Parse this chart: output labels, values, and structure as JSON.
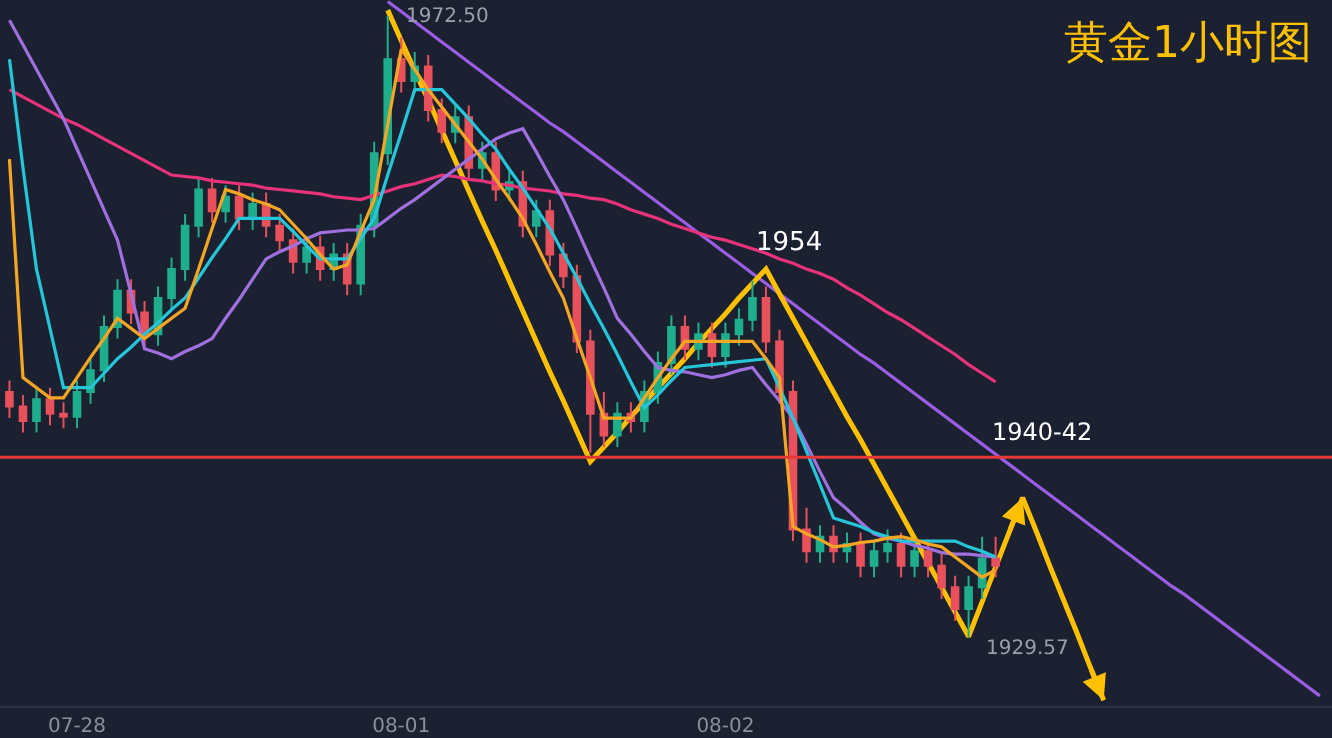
{
  "chart_data": {
    "type": "candlestick",
    "title": "黄金1小时图",
    "categories": [
      null,
      null,
      null,
      null,
      null,
      "07-28",
      null,
      null,
      null,
      null,
      null,
      null,
      null,
      null,
      null,
      null,
      null,
      null,
      null,
      null,
      null,
      null,
      null,
      null,
      null,
      null,
      null,
      null,
      null,
      "08-01",
      null,
      null,
      null,
      null,
      null,
      null,
      null,
      null,
      null,
      null,
      null,
      null,
      null,
      null,
      null,
      null,
      null,
      null,
      null,
      null,
      null,
      null,
      null,
      "08-02",
      null,
      null,
      null,
      null,
      null,
      null,
      null,
      null,
      null,
      null,
      null,
      null,
      null,
      null,
      null,
      null,
      null,
      null,
      null,
      null,
      null,
      null,
      null,
      null,
      null,
      null,
      null,
      null,
      null,
      null,
      null,
      null,
      null,
      null,
      null,
      null,
      null,
      null,
      null,
      null,
      null,
      null,
      null,
      null
    ],
    "ohlc": [
      [
        1946.5,
        1947.3,
        1944.7,
        1945.5
      ],
      [
        1945.5,
        1946.3,
        1943.7,
        1944.5
      ],
      [
        1944.5,
        1946.8,
        1943.7,
        1946
      ],
      [
        1946,
        1946.8,
        1944.2,
        1945
      ],
      [
        1945,
        1945.8,
        1944,
        1944.8
      ],
      [
        1944.8,
        1947.3,
        1944,
        1946.5
      ],
      [
        1946.5,
        1948.8,
        1945.7,
        1948
      ],
      [
        1948,
        1951.8,
        1947.2,
        1951
      ],
      [
        1951,
        1954.3,
        1950.2,
        1953.5
      ],
      [
        1953.5,
        1954.3,
        1951.2,
        1952
      ],
      [
        1952,
        1952.8,
        1949.7,
        1950.5
      ],
      [
        1950.5,
        1953.8,
        1949.7,
        1953
      ],
      [
        1953,
        1955.8,
        1952.2,
        1955
      ],
      [
        1955,
        1958.8,
        1954.2,
        1958
      ],
      [
        1958,
        1961.3,
        1957.2,
        1960.5
      ],
      [
        1960.5,
        1961.3,
        1958.2,
        1959
      ],
      [
        1959,
        1960.8,
        1958.2,
        1960
      ],
      [
        1960,
        1960.8,
        1957.7,
        1958.5
      ],
      [
        1958.5,
        1960.3,
        1957.7,
        1959.5
      ],
      [
        1959.5,
        1960.3,
        1957.2,
        1958
      ],
      [
        1958,
        1958.8,
        1956.2,
        1957
      ],
      [
        1957,
        1957.8,
        1954.7,
        1955.5
      ],
      [
        1955.5,
        1957.3,
        1954.7,
        1956.5
      ],
      [
        1956.5,
        1957.3,
        1954.2,
        1955
      ],
      [
        1955,
        1956.8,
        1954.2,
        1956
      ],
      [
        1956,
        1956.8,
        1953.2,
        1954
      ],
      [
        1954,
        1958.8,
        1953.2,
        1958
      ],
      [
        1958,
        1963.8,
        1957.2,
        1963
      ],
      [
        1963,
        1972.5,
        1962.2,
        1969.5
      ],
      [
        1969.5,
        1971,
        1967.2,
        1968
      ],
      [
        1968,
        1970,
        1967.2,
        1969
      ],
      [
        1969,
        1969.8,
        1965.2,
        1966
      ],
      [
        1966,
        1966.8,
        1963.7,
        1964.5
      ],
      [
        1964.5,
        1966.3,
        1963.7,
        1965.5
      ],
      [
        1965.5,
        1966.3,
        1961.2,
        1962
      ],
      [
        1962,
        1963.8,
        1961.2,
        1963
      ],
      [
        1963,
        1963.8,
        1959.7,
        1960.5
      ],
      [
        1960.5,
        1961.8,
        1959.7,
        1961
      ],
      [
        1961,
        1961.8,
        1957.2,
        1958
      ],
      [
        1958,
        1959.8,
        1957.2,
        1959
      ],
      [
        1959,
        1959.8,
        1955.2,
        1956
      ],
      [
        1956,
        1956.8,
        1953.7,
        1954.5
      ],
      [
        1954.5,
        1955.3,
        1949.2,
        1950
      ],
      [
        1950,
        1950.8,
        1942.3,
        1945
      ],
      [
        1945,
        1946.5,
        1942.7,
        1943.5
      ],
      [
        1943.5,
        1945.8,
        1942.7,
        1945
      ],
      [
        1945,
        1945.8,
        1943.7,
        1944.5
      ],
      [
        1944.5,
        1947.3,
        1943.7,
        1946.5
      ],
      [
        1946.5,
        1949.3,
        1945.7,
        1948.5
      ],
      [
        1948.5,
        1951.8,
        1947.7,
        1951
      ],
      [
        1951,
        1951.8,
        1948.7,
        1949.5
      ],
      [
        1949.5,
        1951.3,
        1948.7,
        1950.5
      ],
      [
        1950.5,
        1951.3,
        1948.2,
        1949
      ],
      [
        1949,
        1951.3,
        1948.2,
        1950.5
      ],
      [
        1950.5,
        1952.3,
        1949.7,
        1951.5
      ],
      [
        1951.5,
        1954.2,
        1950.7,
        1953
      ],
      [
        1953,
        1953.8,
        1949.2,
        1950
      ],
      [
        1950,
        1950.8,
        1945.7,
        1946.5
      ],
      [
        1946.5,
        1947.3,
        1936.2,
        1937
      ],
      [
        1937,
        1938.5,
        1934.7,
        1935.5
      ],
      [
        1935.5,
        1937.3,
        1934.7,
        1936.5
      ],
      [
        1936.5,
        1937.3,
        1934.7,
        1935.5
      ],
      [
        1935.5,
        1936.8,
        1934.7,
        1936
      ],
      [
        1936,
        1936.8,
        1933.7,
        1934.5
      ],
      [
        1934.5,
        1936.3,
        1933.7,
        1935.5
      ],
      [
        1935.5,
        1937,
        1934.7,
        1936
      ],
      [
        1936,
        1936.8,
        1933.7,
        1934.5
      ],
      [
        1934.5,
        1936.3,
        1933.7,
        1935.5
      ],
      [
        1935.5,
        1936.3,
        1933.7,
        1934.5
      ],
      [
        1934.5,
        1935.3,
        1932.2,
        1933
      ],
      [
        1933,
        1933.8,
        1930.7,
        1931.5
      ],
      [
        1931.5,
        1933.8,
        1929.57,
        1933
      ],
      [
        1933,
        1936.5,
        1932.2,
        1935
      ],
      [
        1935,
        1936.5,
        1933.7,
        1934.5
      ],
      null,
      null,
      null,
      null,
      null,
      null,
      null,
      null,
      null,
      null,
      null,
      null,
      null,
      null,
      null,
      null,
      null,
      null,
      null,
      null,
      null,
      null,
      null,
      null
    ],
    "colors": [
      "#e8505b",
      "#e8505b",
      "#1fae8c",
      "#e8505b",
      "#e8505b",
      "#1fae8c",
      "#1fae8c",
      "#1fae8c",
      "#1fae8c",
      "#e8505b",
      "#e8505b",
      "#1fae8c",
      "#1fae8c",
      "#1fae8c",
      "#1fae8c",
      "#e8505b",
      "#1fae8c",
      "#e8505b",
      "#1fae8c",
      "#e8505b",
      "#e8505b",
      "#e8505b",
      "#1fae8c",
      "#e8505b",
      "#1fae8c",
      "#e8505b",
      "#1fae8c",
      "#1fae8c",
      "#1fae8c",
      "#e8505b",
      "#1fae8c",
      "#e8505b",
      "#e8505b",
      "#1fae8c",
      "#e8505b",
      "#1fae8c",
      "#e8505b",
      "#1fae8c",
      "#e8505b",
      "#1fae8c",
      "#e8505b",
      "#e8505b",
      "#e8505b",
      "#e8505b",
      "#e8505b",
      "#1fae8c",
      "#e8505b",
      "#1fae8c",
      "#1fae8c",
      "#1fae8c",
      "#e8505b",
      "#1fae8c",
      "#e8505b",
      "#1fae8c",
      "#1fae8c",
      "#1fae8c",
      "#e8505b",
      "#e8505b",
      "#e8505b",
      "#e8505b",
      "#1fae8c",
      "#e8505b",
      "#1fae8c",
      "#e8505b",
      "#1fae8c",
      "#1fae8c",
      "#e8505b",
      "#1fae8c",
      "#e8505b",
      "#e8505b",
      "#e8505b",
      "#1fae8c",
      "#1fae8c",
      "#e8505b",
      null,
      null,
      null,
      null,
      null,
      null,
      null,
      null,
      null,
      null,
      null,
      null,
      null,
      null,
      null,
      null,
      null,
      null,
      null,
      null,
      null,
      null,
      null,
      null
    ],
    "series": [
      {
        "type": "line",
        "color": "#e8327a",
        "values": [
          1967.4,
          1966.9,
          1966.4,
          1965.9,
          1965.4,
          1965.0,
          1964.5,
          1964.0,
          1963.5,
          1963.0,
          1962.5,
          1962.0,
          1961.5,
          1961.4,
          1961.3,
          1961.1,
          1961.0,
          1960.9,
          1960.8,
          1960.6,
          1960.5,
          1960.4,
          1960.3,
          1960.2,
          1960.0,
          1959.9,
          1959.8,
          1960.1,
          1960.4,
          1960.7,
          1960.9,
          1961.2,
          1961.5,
          1961.4,
          1961.2,
          1961.1,
          1960.9,
          1960.8,
          1960.6,
          1960.5,
          1960.4,
          1960.2,
          1960.1,
          1959.9,
          1959.8,
          1959.5,
          1959.1,
          1958.8,
          1958.5,
          1958.1,
          1957.8,
          1957.5,
          1957.2,
          1957.0,
          1956.7,
          1956.4,
          1956.1,
          1955.7,
          1955.4,
          1955.0,
          1954.7,
          1954.3,
          1953.7,
          1953.2,
          1952.6,
          1952.0,
          1951.5,
          1950.9,
          1950.3,
          1949.7,
          1949.1,
          1948.4,
          1947.8,
          1947.2,
          null,
          null,
          null,
          null,
          null,
          null,
          null,
          null,
          null,
          null,
          null,
          null,
          null,
          null,
          null,
          null,
          null,
          null,
          null,
          null,
          null,
          null,
          null,
          null
        ]
      },
      {
        "type": "line",
        "color": "#a070e0",
        "values": [
          1972.2,
          1970.5,
          1968.8,
          1967.1,
          1965.4,
          1963.3,
          1961.2,
          1959.1,
          1957.0,
          1953.3,
          1949.5,
          1949.2,
          1948.8,
          1949.3,
          1949.7,
          1950.2,
          1951.6,
          1952.9,
          1954.3,
          1955.7,
          1956.2,
          1956.6,
          1957.1,
          1957.5,
          1957.6,
          1957.7,
          1957.7,
          1957.8,
          1958.5,
          1959.2,
          1959.8,
          1960.5,
          1961.2,
          1961.9,
          1962.6,
          1963.3,
          1964.0,
          1964.4,
          1964.7,
          1963.1,
          1961.4,
          1959.8,
          1957.8,
          1955.7,
          1953.7,
          1951.6,
          1950.5,
          1949.3,
          1948.2,
          1948.0,
          1947.9,
          1947.7,
          1947.5,
          1947.7,
          1948.0,
          1948.2,
          1947.0,
          1945.9,
          1944.7,
          1942.9,
          1941.0,
          1939.2,
          1938.4,
          1937.5,
          1936.7,
          1936.4,
          1936.2,
          1935.9,
          1935.7,
          1935.4,
          1935.3,
          1935.3,
          1935.2,
          1935.1,
          null,
          null,
          null,
          null,
          null,
          null,
          null,
          null,
          null,
          null,
          null,
          null,
          null,
          null,
          null,
          null,
          null,
          null,
          null,
          null,
          null,
          null,
          null,
          null
        ]
      },
      {
        "type": "line",
        "color": "#26c6da",
        "values": [
          1969.5,
          1962.0,
          1955.0,
          1950.9,
          1946.8,
          1946.8,
          1946.8,
          1947.8,
          1948.8,
          1949.6,
          1950.5,
          1951.3,
          1952.2,
          1953.0,
          1954.4,
          1955.8,
          1957.1,
          1958.5,
          1958.5,
          1958.5,
          1958.5,
          1957.6,
          1956.6,
          1955.7,
          1955.7,
          1955.7,
          1957.1,
          1958.5,
          1961.5,
          1964.4,
          1967.4,
          1967.4,
          1967.4,
          1966.4,
          1965.4,
          1964.3,
          1963.3,
          1961.9,
          1960.6,
          1959.2,
          1957.8,
          1956.1,
          1954.4,
          1952.6,
          1950.9,
          1949.1,
          1947.2,
          1945.4,
          1946.3,
          1947.3,
          1948.2,
          1948.3,
          1948.4,
          1948.5,
          1948.6,
          1948.7,
          1948.8,
          1946.8,
          1944.7,
          1942.4,
          1940.1,
          1937.8,
          1937.5,
          1937.2,
          1936.8,
          1936.5,
          1936.2,
          1936.2,
          1936.2,
          1936.2,
          1936.2,
          1935.8,
          1935.5,
          1935.1,
          null,
          null,
          null,
          null,
          null,
          null,
          null,
          null,
          null,
          null,
          null,
          null,
          null,
          null,
          null,
          null,
          null,
          null,
          null,
          null,
          null,
          null,
          null,
          null
        ]
      },
      {
        "type": "line",
        "color": "#f5a623",
        "values": [
          1962.6,
          1947.5,
          1946.8,
          1946.1,
          1946.1,
          1947.5,
          1948.9,
          1950.2,
          1951.6,
          1950.9,
          1950.2,
          1950.9,
          1951.6,
          1952.3,
          1955.0,
          1957.8,
          1960.5,
          1960.2,
          1959.8,
          1959.5,
          1959.1,
          1958.1,
          1957.1,
          1956.0,
          1955.0,
          1955.3,
          1957.6,
          1959.8,
          1965.0,
          1970.2,
          1968.8,
          1967.4,
          1966.2,
          1965.0,
          1963.8,
          1962.6,
          1961.2,
          1959.9,
          1958.5,
          1956.7,
          1954.8,
          1953.0,
          1950.2,
          1947.5,
          1944.7,
          1944.7,
          1944.7,
          1946.1,
          1947.5,
          1948.8,
          1950.0,
          1950.0,
          1950.0,
          1950.0,
          1950.0,
          1950.0,
          1948.8,
          1947.5,
          1937.2,
          1936.7,
          1936.3,
          1935.8,
          1935.9,
          1936.1,
          1936.2,
          1936.4,
          1936.5,
          1936.3,
          1936.0,
          1935.8,
          1935.1,
          1934.4,
          1933.7,
          1934.2,
          null,
          null,
          null,
          null,
          null,
          null,
          null,
          null,
          null,
          null,
          null,
          null,
          null,
          null,
          null,
          null,
          null,
          null,
          null,
          null,
          null,
          null,
          null,
          null
        ]
      },
      {
        "type": "line",
        "color": "#9b5de5",
        "values": [
          null,
          null,
          null,
          null,
          null,
          null,
          null,
          null,
          null,
          null,
          null,
          null,
          null,
          null,
          null,
          null,
          null,
          null,
          null,
          null,
          null,
          null,
          null,
          null,
          null,
          null,
          null,
          null,
          1973.5,
          1972.8,
          1972.1,
          1971.4,
          1970.7,
          1970.0,
          1969.3,
          1968.6,
          1967.9,
          1967.2,
          1966.5,
          1965.8,
          1965.1,
          1964.5,
          1963.8,
          1963.1,
          1962.4,
          1961.7,
          1961.0,
          1960.3,
          1959.6,
          1958.9,
          1958.2,
          1957.5,
          1956.8,
          1956.1,
          1955.4,
          1954.7,
          1954.0,
          1953.3,
          1952.6,
          1951.9,
          1951.2,
          1950.5,
          1949.8,
          1949.1,
          1948.5,
          1947.8,
          1947.1,
          1946.4,
          1945.7,
          1945.0,
          1944.3,
          1943.6,
          1942.9,
          1942.2,
          1941.5,
          1940.8,
          1940.1,
          1939.4,
          1938.7,
          1938.0,
          1937.3,
          1936.6,
          1935.9,
          1935.2,
          1934.5,
          1933.8,
          1933.1,
          1932.5,
          1931.8,
          1931.1,
          1930.4,
          1929.7,
          1929.0,
          1928.3,
          1927.6,
          1926.9,
          1926.2,
          1925.5
        ]
      },
      {
        "type": "line",
        "color": "#ffc000",
        "values": [
          null,
          null,
          null,
          null,
          null,
          null,
          null,
          null,
          null,
          null,
          null,
          null,
          null,
          null,
          null,
          null,
          null,
          null,
          null,
          null,
          null,
          null,
          null,
          null,
          null,
          null,
          null,
          null,
          1972.9,
          1970.8,
          1968.7,
          1966.7,
          1964.6,
          1962.5,
          1960.4,
          1958.3,
          1956.3,
          1954.2,
          1952.1,
          1950.0,
          1947.9,
          1945.9,
          1943.8,
          1941.7,
          1942.7,
          1943.7,
          1944.8,
          1945.8,
          1946.8,
          1947.8,
          1948.8,
          1949.9,
          1950.9,
          1951.9,
          1953.0,
          1954.0,
          1955.0,
          1953.3,
          1951.6,
          1949.9,
          1948.2,
          1946.5,
          1944.8,
          1943.2,
          1941.5,
          1939.8,
          1938.1,
          1936.4,
          1934.7,
          1933.0,
          1931.3,
          1929.6,
          1932.0,
          1934.4,
          1936.8,
          1939.2,
          1936.9,
          1934.5,
          1932.2,
          1929.9,
          1927.5,
          1925.2,
          null,
          null,
          null,
          null,
          null,
          null,
          null,
          null,
          null,
          null,
          null,
          null,
          null,
          null,
          null,
          null
        ]
      }
    ],
    "ylim": [
      1924.8,
      1973.6
    ],
    "tick_labels": "x",
    "ref_lines": [
      {
        "axis": "y",
        "value": 1942,
        "color": "#e53935"
      }
    ],
    "annotations": [
      "1972.50",
      "1954",
      "1929.57",
      "1940-42"
    ]
  }
}
